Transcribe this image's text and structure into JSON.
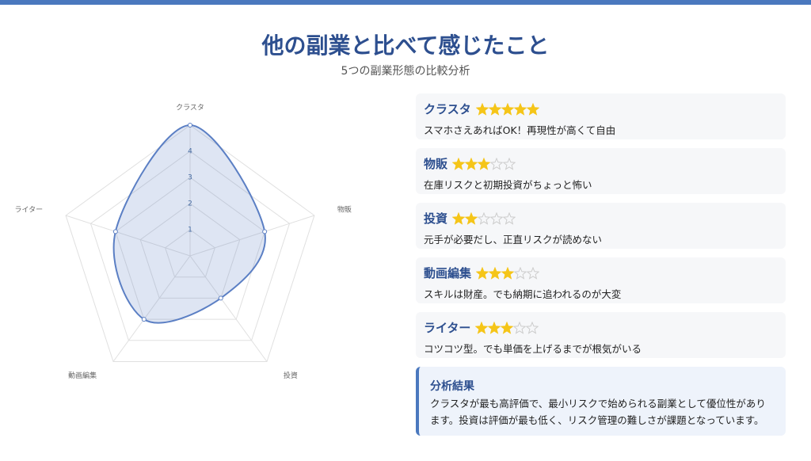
{
  "header": {
    "title": "他の副業と比べて感じたこと",
    "subtitle": "5つの副業形態の比較分析"
  },
  "chart_data": {
    "type": "radar",
    "categories": [
      "クラスタ",
      "物販",
      "投資",
      "動画編集",
      "ライター"
    ],
    "values": [
      5,
      3,
      2,
      3,
      3
    ],
    "color": "#5b7fc4",
    "ylim": [
      0,
      5
    ],
    "yticks": [
      1,
      2,
      3,
      4
    ],
    "grid": true
  },
  "cards": [
    {
      "description": "スマホさえあればOK！再現性が高くて自由"
    },
    {
      "description": "在庫リスクと初期投資がちょっと怖い"
    },
    {
      "description": "元手が必要だし、正直リスクが読めない"
    },
    {
      "description": "スキルは財産。でも納期に追われるのが大変"
    },
    {
      "description": "コツコツ型。でも単価を上げるまでが根気がいる"
    }
  ],
  "summary": {
    "title": "分析結果",
    "text": "クラスタが最も高評価で、最小リスクで始められる副業として優位性があります。投資は評価が最も低く、リスク管理の難しさが課題となっています。"
  }
}
